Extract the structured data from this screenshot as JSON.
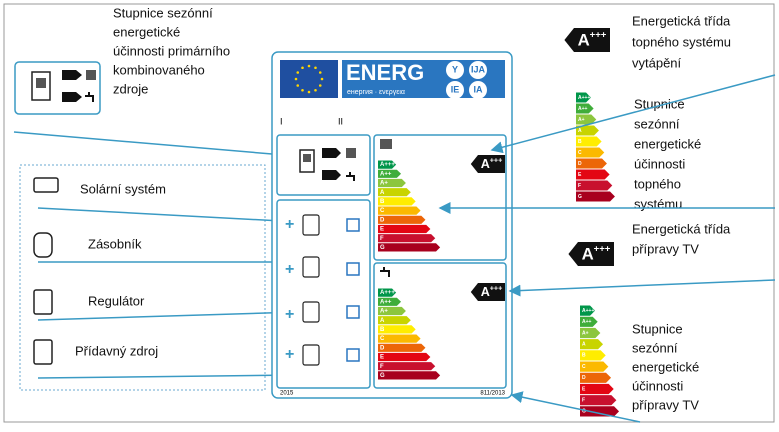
{
  "callouts": {
    "primary": [
      "Stupnice sezónní",
      "energetické",
      "účinnosti primárního",
      "kombinovaného",
      "zdroje"
    ],
    "heating_class": [
      "Energetická třída",
      "topného systému",
      "vytápění"
    ],
    "heating_scale": [
      "Stupnice",
      "sezónní",
      "energetické",
      "účinnosti",
      "topného",
      "systému"
    ],
    "water_class": [
      "Energetická třída",
      "přípravy TV"
    ],
    "water_scale": [
      "Stupnice",
      "sezónní",
      "energetické",
      "účinnosti",
      "přípravy TV"
    ]
  },
  "components": [
    "Solární systém",
    "Zásobník",
    "Regulátor",
    "Přídavný zdroj"
  ],
  "label": {
    "brand": "ENERG",
    "subtitle": "енергия · ενεργεια",
    "codes": [
      "Y",
      "IJA",
      "IE",
      "IA"
    ],
    "columns": [
      "I",
      "II"
    ],
    "year": "2015",
    "regulation": "811/2013",
    "plus": "+"
  },
  "classes": [
    "A+++",
    "A++",
    "A+",
    "A",
    "B",
    "C",
    "D",
    "E",
    "F",
    "G"
  ],
  "badge": {
    "letter": "A",
    "plus": "+++"
  }
}
